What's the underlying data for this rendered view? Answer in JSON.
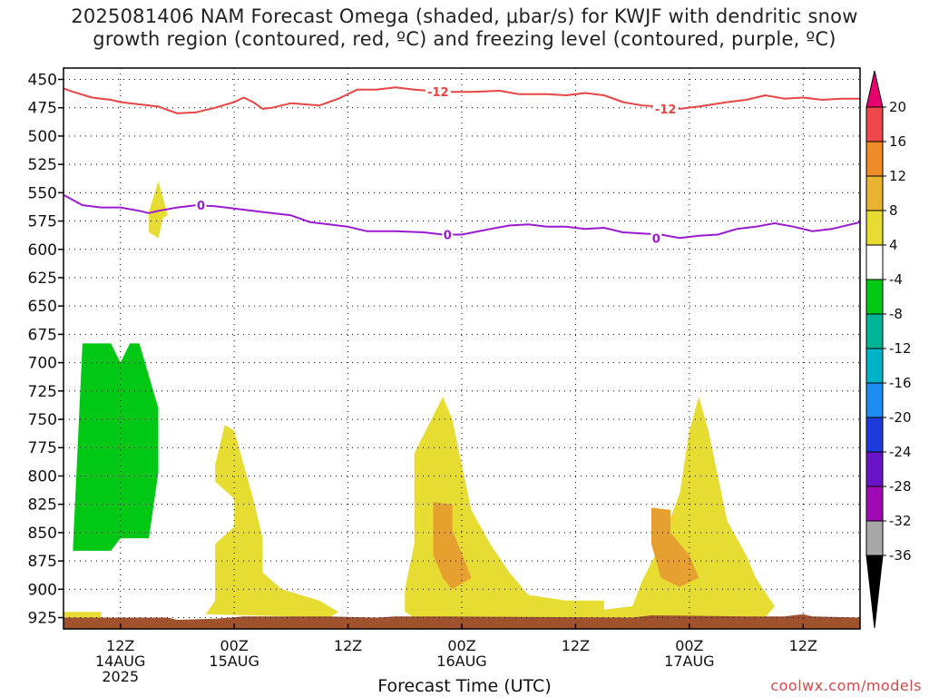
{
  "title": {
    "line1": "2025081406 NAM Forecast Omega (shaded, μbar/s) for KWJF with dendritic snow",
    "line2": "growth region (contoured, red, ºC) and freezing level (contoured, purple, ºC)"
  },
  "x_axis_title": "Forecast Time (UTC)",
  "credit": "coolwx.com/models",
  "colors": {
    "dgz_contour": "#e84545",
    "freezing_contour": "#9a1ad0",
    "terrain": "#a0522d",
    "green_shade": "#00c814",
    "yellow_shade": "#e6dc32",
    "orange_shade": "#e6a030"
  },
  "chart_data": {
    "type": "contour",
    "y_axis": {
      "quantity": "pressure (mb)",
      "inverted": true,
      "range": [
        440,
        935
      ],
      "ticks": [
        450,
        475,
        500,
        525,
        550,
        575,
        600,
        625,
        650,
        675,
        700,
        725,
        750,
        775,
        800,
        825,
        850,
        875,
        900,
        925
      ],
      "grid": true
    },
    "x_axis": {
      "unit": "forecast hour from 2025-08-14 06Z",
      "range": [
        0,
        84
      ],
      "ticks": [
        {
          "hour": 6,
          "lines": [
            "12Z",
            "14AUG",
            "2025"
          ]
        },
        {
          "hour": 18,
          "lines": [
            "00Z",
            "15AUG"
          ]
        },
        {
          "hour": 30,
          "lines": [
            "12Z"
          ]
        },
        {
          "hour": 42,
          "lines": [
            "00Z",
            "16AUG"
          ]
        },
        {
          "hour": 54,
          "lines": [
            "12Z"
          ]
        },
        {
          "hour": 66,
          "lines": [
            "00Z",
            "17AUG"
          ]
        },
        {
          "hour": 78,
          "lines": [
            "12Z"
          ]
        }
      ],
      "grid": true
    },
    "colorbar": {
      "labels": [
        "20",
        "16",
        "12",
        "8",
        "4",
        "-4",
        "-8",
        "-12",
        "-16",
        "-20",
        "-24",
        "-28",
        "-32",
        "-36"
      ],
      "colors": [
        "#e8006e",
        "#f04848",
        "#f08c28",
        "#e8b432",
        "#e6dc32",
        "#ffffff",
        "#00c814",
        "#00b496",
        "#00b4c8",
        "#1e8cf0",
        "#1e3cdc",
        "#6a14c8",
        "#a00ab4",
        "#a8a8a8",
        "#000000"
      ]
    },
    "contours": [
      {
        "name": "-12",
        "points": [
          [
            0,
            458
          ],
          [
            1,
            461
          ],
          [
            3,
            466
          ],
          [
            5,
            468
          ],
          [
            6,
            470
          ],
          [
            8,
            472
          ],
          [
            10,
            474
          ],
          [
            12,
            480
          ],
          [
            14,
            479
          ],
          [
            16,
            475
          ],
          [
            18,
            470
          ],
          [
            19,
            466
          ],
          [
            20,
            470
          ],
          [
            21,
            476
          ],
          [
            22,
            475
          ],
          [
            24,
            471
          ],
          [
            27,
            473
          ],
          [
            29,
            467
          ],
          [
            31,
            459
          ],
          [
            33,
            459
          ],
          [
            35,
            457
          ],
          [
            37,
            459
          ],
          [
            40,
            461
          ],
          [
            43,
            461
          ],
          [
            46,
            460
          ],
          [
            48,
            463
          ],
          [
            51,
            463
          ],
          [
            53,
            464
          ],
          [
            55,
            462
          ],
          [
            57,
            464
          ],
          [
            59,
            470
          ],
          [
            61,
            473
          ],
          [
            63,
            474
          ],
          [
            65,
            476
          ],
          [
            67,
            474
          ],
          [
            70,
            470
          ],
          [
            72,
            468
          ],
          [
            74,
            464
          ],
          [
            76,
            467
          ],
          [
            78,
            466
          ],
          [
            80,
            468
          ],
          [
            82,
            467
          ],
          [
            84,
            467
          ]
        ],
        "labels": [
          {
            "x": 39.5,
            "y": 461,
            "text": "-12"
          },
          {
            "x": 63.5,
            "y": 476,
            "text": "-12"
          }
        ]
      },
      {
        "name": "0",
        "points": [
          [
            0,
            552
          ],
          [
            2,
            561
          ],
          [
            4,
            563
          ],
          [
            6,
            563
          ],
          [
            8,
            566
          ],
          [
            9,
            568
          ],
          [
            10,
            566
          ],
          [
            12,
            563
          ],
          [
            14,
            561
          ],
          [
            16,
            562
          ],
          [
            18,
            564
          ],
          [
            21,
            567
          ],
          [
            24,
            570
          ],
          [
            26,
            576
          ],
          [
            28,
            578
          ],
          [
            30,
            580
          ],
          [
            32,
            584
          ],
          [
            35,
            584
          ],
          [
            38,
            585
          ],
          [
            40,
            587
          ],
          [
            42,
            587
          ],
          [
            45,
            582
          ],
          [
            47,
            579
          ],
          [
            49,
            578
          ],
          [
            51,
            580
          ],
          [
            53,
            580
          ],
          [
            55,
            582
          ],
          [
            57,
            581
          ],
          [
            59,
            585
          ],
          [
            61,
            586
          ],
          [
            63,
            587
          ],
          [
            65,
            590
          ],
          [
            67,
            588
          ],
          [
            69,
            587
          ],
          [
            71,
            582
          ],
          [
            73,
            580
          ],
          [
            75,
            577
          ],
          [
            77,
            580
          ],
          [
            79,
            584
          ],
          [
            81,
            582
          ],
          [
            84,
            576
          ]
        ],
        "labels": [
          {
            "x": 14.5,
            "y": 561,
            "text": "0"
          },
          {
            "x": 40.5,
            "y": 587,
            "text": "0"
          },
          {
            "x": 62.5,
            "y": 590,
            "text": "0"
          }
        ]
      }
    ],
    "shaded_regions": [
      {
        "value": "-4 to -8",
        "points": [
          [
            1,
            862
          ],
          [
            2,
            683
          ],
          [
            5,
            683
          ],
          [
            6,
            700
          ],
          [
            7,
            683
          ],
          [
            8,
            683
          ],
          [
            10,
            740
          ],
          [
            10,
            797
          ],
          [
            9,
            855
          ],
          [
            6,
            855
          ],
          [
            5,
            866
          ],
          [
            3,
            866
          ],
          [
            1,
            866
          ]
        ]
      },
      {
        "value": "4 to 8",
        "points": [
          [
            9,
            567
          ],
          [
            10,
            540
          ],
          [
            11,
            570
          ],
          [
            10.5,
            572
          ],
          [
            10,
            590
          ],
          [
            9,
            585
          ],
          [
            9,
            575
          ]
        ]
      },
      {
        "value": "4 to 8",
        "points": [
          [
            0,
            927
          ],
          [
            0,
            920
          ],
          [
            4,
            920
          ],
          [
            4,
            927
          ]
        ]
      },
      {
        "value": "4 to 8",
        "points": [
          [
            16,
            790
          ],
          [
            17,
            755
          ],
          [
            18,
            760
          ],
          [
            19,
            790
          ],
          [
            20,
            820
          ],
          [
            21,
            855
          ],
          [
            21,
            885
          ],
          [
            23,
            900
          ],
          [
            27,
            910
          ],
          [
            29,
            920
          ],
          [
            28,
            925
          ],
          [
            15,
            922
          ],
          [
            16,
            910
          ],
          [
            16,
            860
          ],
          [
            18,
            845
          ],
          [
            18,
            820
          ],
          [
            16,
            805
          ]
        ]
      },
      {
        "value": "4 to 8",
        "points": [
          [
            36,
            907
          ],
          [
            36,
            900
          ],
          [
            37,
            860
          ],
          [
            37,
            780
          ],
          [
            40,
            730
          ],
          [
            41,
            750
          ],
          [
            42,
            790
          ],
          [
            43,
            830
          ],
          [
            45,
            860
          ],
          [
            47,
            885
          ],
          [
            49,
            905
          ],
          [
            53,
            910
          ],
          [
            57,
            910
          ],
          [
            57,
            918
          ],
          [
            60,
            915
          ],
          [
            61,
            893
          ],
          [
            63,
            860
          ],
          [
            65,
            815
          ],
          [
            66,
            760
          ],
          [
            67,
            730
          ],
          [
            68,
            760
          ],
          [
            69,
            800
          ],
          [
            70,
            840
          ],
          [
            72,
            870
          ],
          [
            73,
            890
          ],
          [
            75,
            915
          ],
          [
            74,
            925
          ],
          [
            66,
            925
          ],
          [
            60,
            925
          ],
          [
            53,
            925
          ],
          [
            37,
            925
          ],
          [
            36,
            920
          ]
        ]
      },
      {
        "value": "8 to 12",
        "points": [
          [
            39,
            823
          ],
          [
            41,
            825
          ],
          [
            41,
            848
          ],
          [
            42,
            868
          ],
          [
            43,
            890
          ],
          [
            41,
            900
          ],
          [
            40,
            890
          ],
          [
            39,
            870
          ]
        ]
      },
      {
        "value": "8 to 12",
        "points": [
          [
            62,
            828
          ],
          [
            64,
            830
          ],
          [
            64,
            850
          ],
          [
            66,
            870
          ],
          [
            67,
            890
          ],
          [
            65,
            898
          ],
          [
            63,
            890
          ],
          [
            62,
            860
          ]
        ]
      }
    ],
    "terrain": {
      "points": [
        [
          0,
          925
        ],
        [
          5,
          925
        ],
        [
          11,
          925
        ],
        [
          12,
          927
        ],
        [
          16,
          926
        ],
        [
          19,
          924
        ],
        [
          28,
          924
        ],
        [
          33,
          925
        ],
        [
          35,
          924
        ],
        [
          40,
          924
        ],
        [
          60,
          925
        ],
        [
          62,
          923
        ],
        [
          72,
          924
        ],
        [
          76,
          924
        ],
        [
          78,
          922
        ],
        [
          79,
          924
        ],
        [
          84,
          925
        ],
        [
          84,
          935
        ],
        [
          0,
          935
        ]
      ]
    }
  }
}
